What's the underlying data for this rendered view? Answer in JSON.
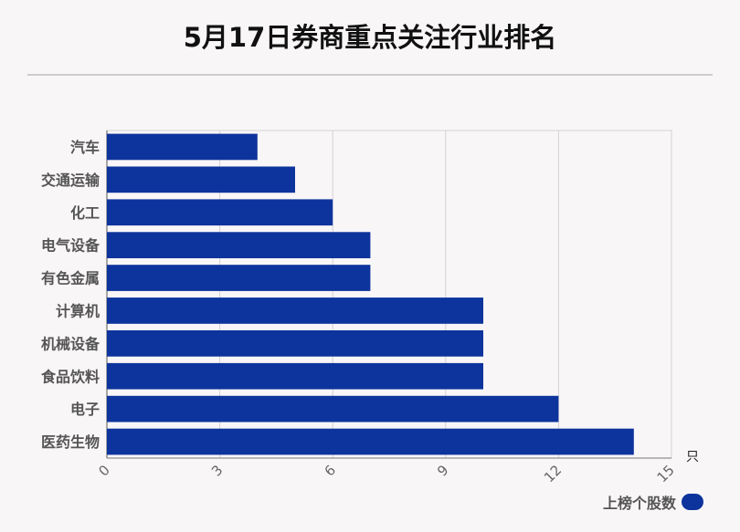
{
  "title": "5月17日券商重点关注行业排名",
  "chart_data": {
    "type": "bar",
    "orientation": "horizontal",
    "title": "5月17日券商重点关注行业排名",
    "categories": [
      "汽车",
      "交通运输",
      "化工",
      "电气设备",
      "有色金属",
      "计算机",
      "机械设备",
      "食品饮料",
      "电子",
      "医药生物"
    ],
    "series": [
      {
        "name": "上榜个股数",
        "values": [
          4,
          5,
          6,
          7,
          7,
          10,
          10,
          10,
          12,
          14
        ]
      }
    ],
    "xlim": [
      0,
      15
    ],
    "xticks": [
      "0",
      "3",
      "6",
      "9",
      "12",
      "15"
    ],
    "xunit": "只",
    "grid": true,
    "legend_position": "bottom-right",
    "bar_color": "#0d349c"
  }
}
